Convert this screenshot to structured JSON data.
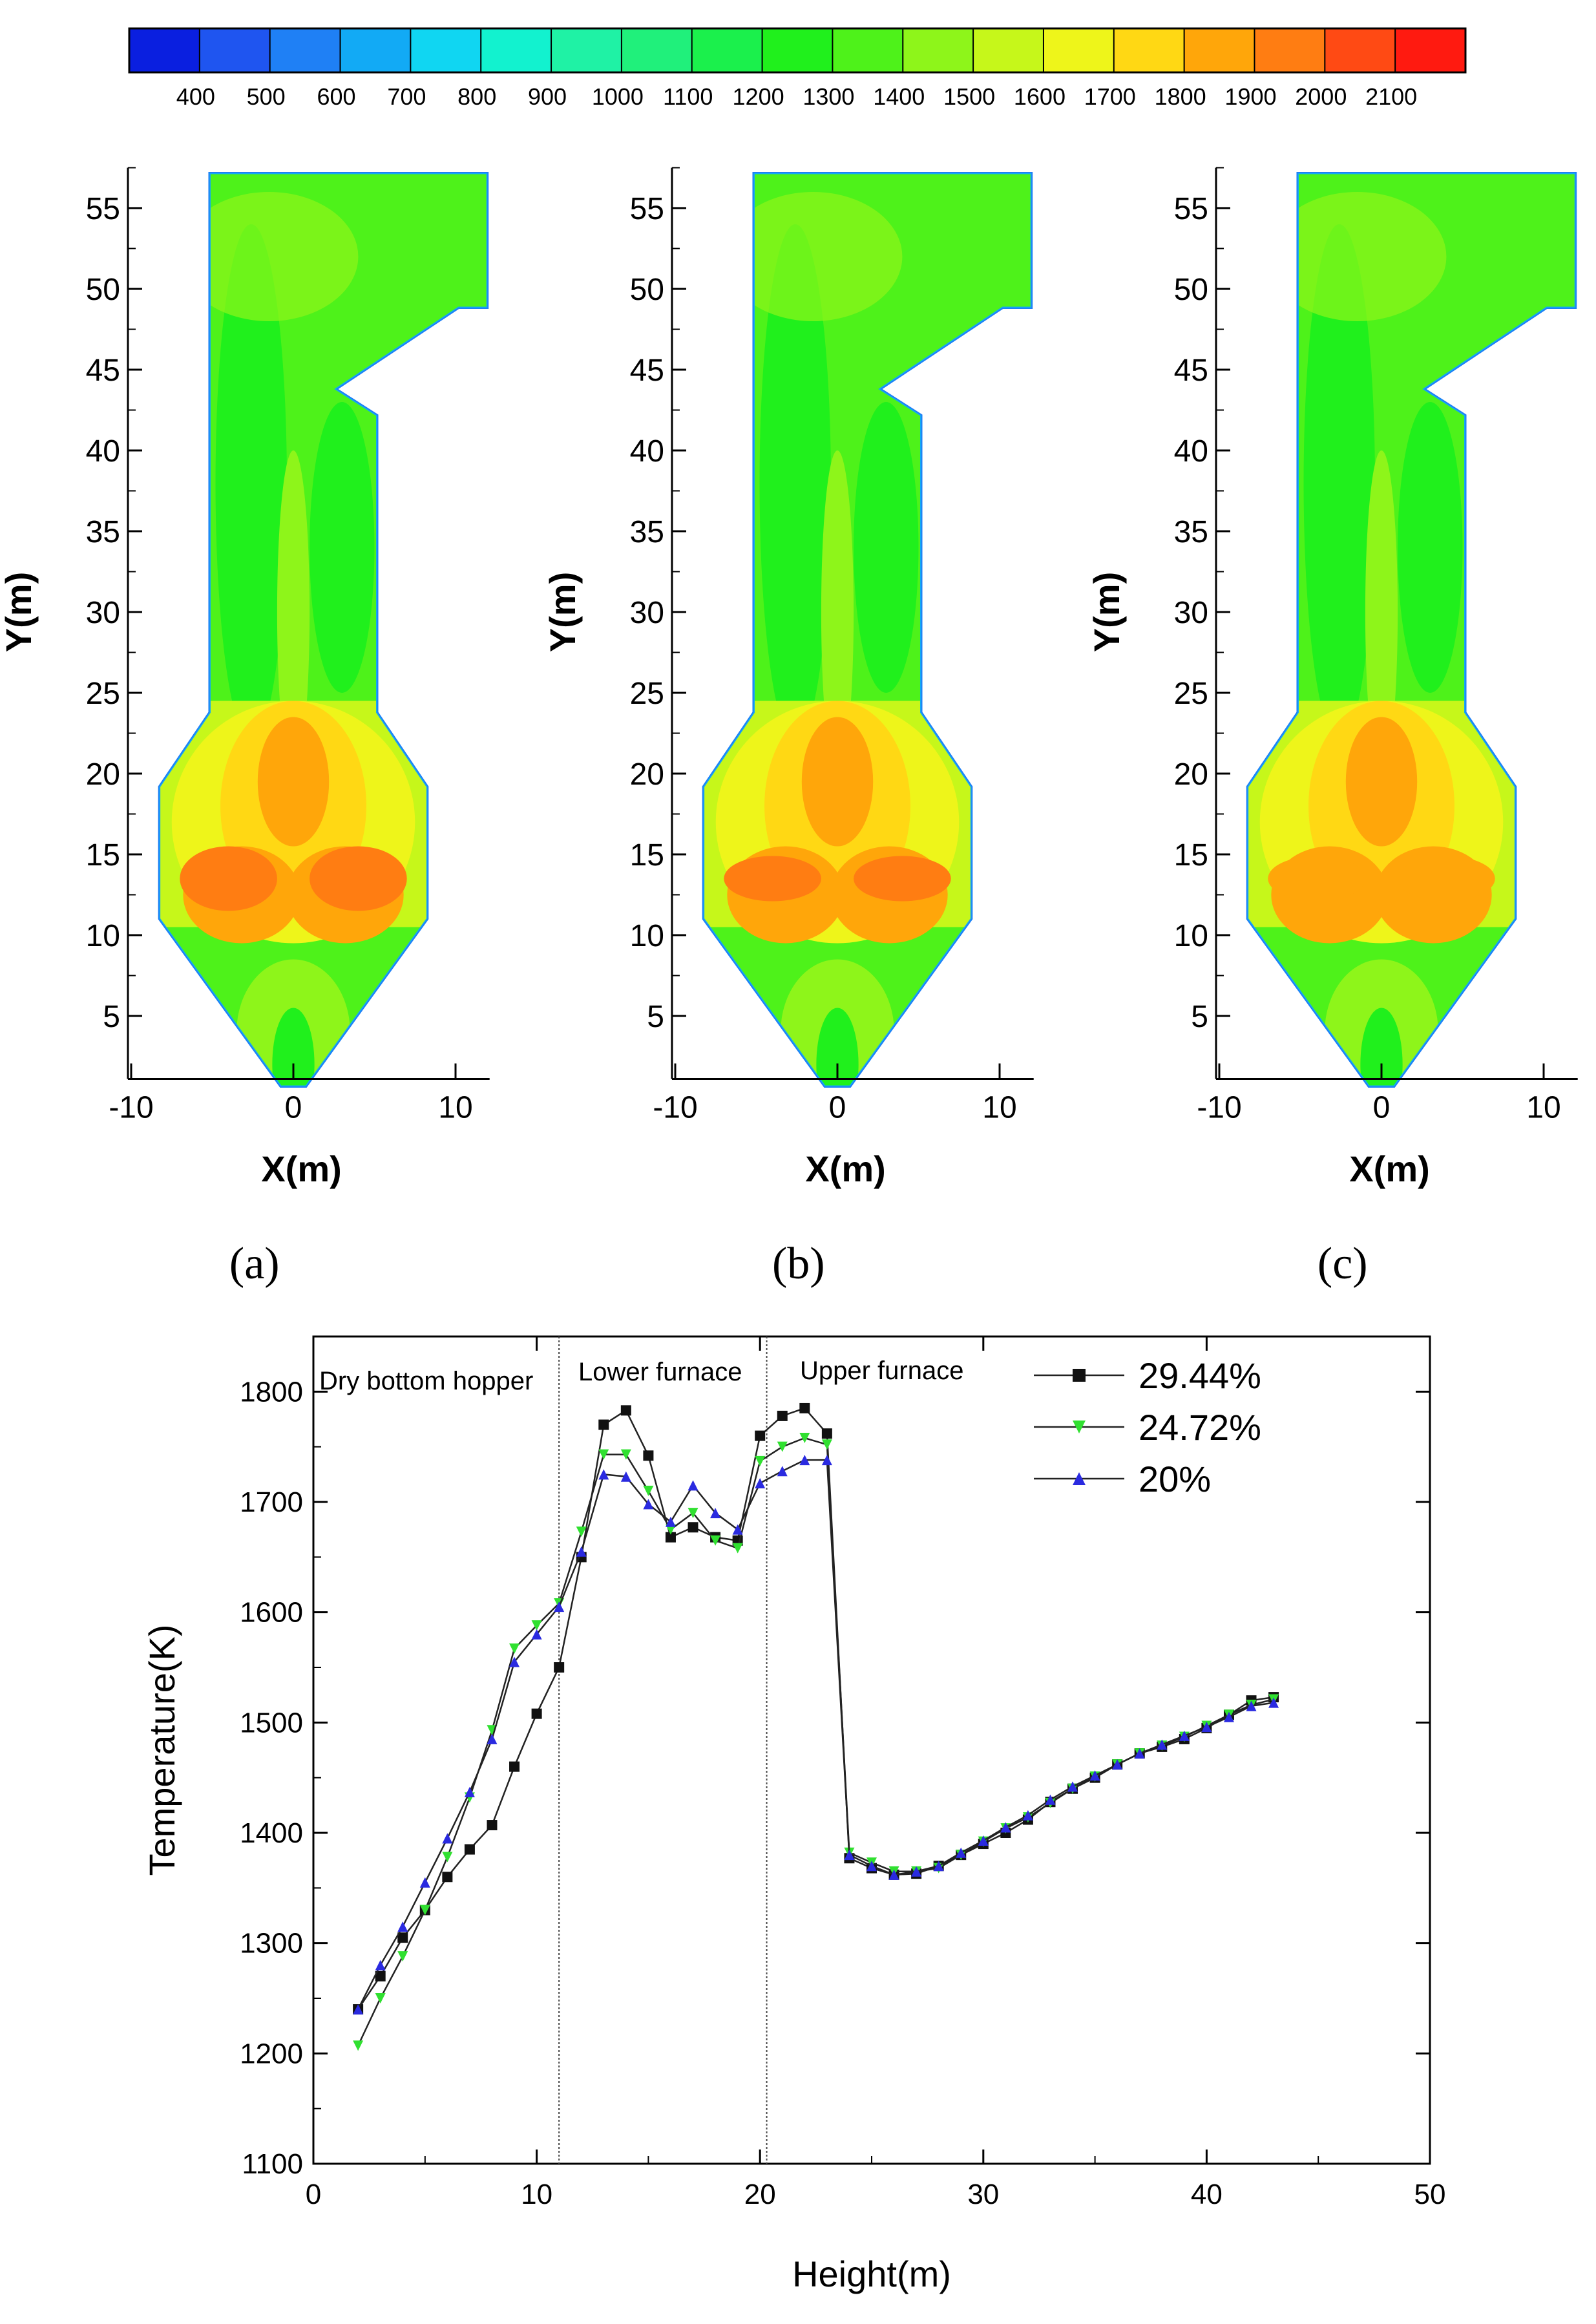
{
  "colorbar": {
    "ticks": [
      "400",
      "500",
      "600",
      "700",
      "800",
      "900",
      "1000",
      "1100",
      "1200",
      "1300",
      "1400",
      "1500",
      "1600",
      "1700",
      "1800",
      "1900",
      "2000",
      "2100"
    ],
    "colors": [
      "#0a1fe0",
      "#1f55f0",
      "#1f80f5",
      "#12aaf5",
      "#10d6f2",
      "#12f2cf",
      "#1ff2a5",
      "#20f07b",
      "#1bf04c",
      "#20f01c",
      "#4ef21a",
      "#8ef51a",
      "#c6f71a",
      "#eef51a",
      "#ffd814",
      "#ffa60a",
      "#ff7d12",
      "#ff4a14",
      "#ff1a10"
    ]
  },
  "contour_panels": [
    {
      "caption": "(a)",
      "xlabel": "X(m)",
      "ylabel": "Y(m)",
      "xticks": [
        "-10",
        "0",
        "10"
      ],
      "yticks": [
        "5",
        "10",
        "15",
        "20",
        "25",
        "30",
        "35",
        "40",
        "45",
        "50",
        "55"
      ]
    },
    {
      "caption": "(b)",
      "xlabel": "X(m)",
      "ylabel": "Y(m)",
      "xticks": [
        "-10",
        "0",
        "10"
      ],
      "yticks": [
        "5",
        "10",
        "15",
        "20",
        "25",
        "30",
        "35",
        "40",
        "45",
        "50",
        "55"
      ]
    },
    {
      "caption": "(c)",
      "xlabel": "X(m)",
      "ylabel": "Y(m)",
      "xticks": [
        "-10",
        "0",
        "10"
      ],
      "yticks": [
        "5",
        "10",
        "15",
        "20",
        "25",
        "30",
        "35",
        "40",
        "45",
        "50",
        "55"
      ]
    }
  ],
  "chart_data": {
    "type": "line",
    "xlabel": "Height(m)",
    "ylabel": "Temperature(K)",
    "xlim": [
      0,
      50
    ],
    "ylim": [
      1100,
      1850
    ],
    "xticks": [
      0,
      10,
      20,
      30,
      40,
      50
    ],
    "yticks": [
      1100,
      1200,
      1300,
      1400,
      1500,
      1600,
      1700,
      1800
    ],
    "region_labels": [
      "Dry bottom hopper",
      "Lower furnace",
      "Upper furnace"
    ],
    "region_dividers": [
      11,
      20.3
    ],
    "legend_position": "top-right",
    "series": [
      {
        "name": "29.44%",
        "color": "#111111",
        "marker": "square",
        "x": [
          2,
          3,
          4,
          5,
          6,
          7,
          8,
          9,
          10,
          11,
          12,
          13,
          14,
          15,
          16,
          17,
          18,
          19,
          20,
          21,
          22,
          23,
          24,
          25,
          26,
          27,
          28,
          29,
          30,
          31,
          32,
          33,
          34,
          35,
          36,
          37,
          38,
          39,
          40,
          41,
          42,
          43
        ],
        "y": [
          1240,
          1270,
          1305,
          1330,
          1360,
          1385,
          1407,
          1460,
          1508,
          1550,
          1650,
          1770,
          1783,
          1742,
          1668,
          1677,
          1668,
          1665,
          1760,
          1778,
          1785,
          1762,
          1377,
          1368,
          1362,
          1363,
          1370,
          1380,
          1390,
          1400,
          1412,
          1428,
          1440,
          1450,
          1462,
          1472,
          1478,
          1485,
          1495,
          1507,
          1520,
          1523
        ]
      },
      {
        "name": "24.72%",
        "color": "#30e030",
        "marker": "triangle-down",
        "x": [
          2,
          3,
          4,
          5,
          6,
          7,
          8,
          9,
          10,
          11,
          12,
          13,
          14,
          15,
          16,
          17,
          18,
          19,
          20,
          21,
          22,
          23,
          24,
          25,
          26,
          27,
          28,
          29,
          30,
          31,
          32,
          33,
          34,
          35,
          36,
          37,
          38,
          39,
          40,
          41,
          42,
          43
        ],
        "y": [
          1207,
          1250,
          1288,
          1330,
          1378,
          1432,
          1493,
          1567,
          1588,
          1608,
          1673,
          1743,
          1743,
          1710,
          1675,
          1690,
          1665,
          1658,
          1737,
          1750,
          1758,
          1752,
          1382,
          1373,
          1365,
          1365,
          1368,
          1380,
          1392,
          1404,
          1414,
          1427,
          1440,
          1451,
          1462,
          1472,
          1479,
          1487,
          1497,
          1507,
          1516,
          1521
        ]
      },
      {
        "name": "20%",
        "color": "#2a2ae0",
        "marker": "triangle-up",
        "x": [
          2,
          3,
          4,
          5,
          6,
          7,
          8,
          9,
          10,
          11,
          12,
          13,
          14,
          15,
          16,
          17,
          18,
          19,
          20,
          21,
          22,
          23,
          24,
          25,
          26,
          27,
          28,
          29,
          30,
          31,
          32,
          33,
          34,
          35,
          36,
          37,
          38,
          39,
          40,
          41,
          42,
          43
        ],
        "y": [
          1240,
          1280,
          1315,
          1355,
          1395,
          1437,
          1485,
          1555,
          1580,
          1605,
          1655,
          1725,
          1723,
          1698,
          1682,
          1715,
          1690,
          1675,
          1717,
          1728,
          1738,
          1738,
          1380,
          1370,
          1362,
          1365,
          1370,
          1382,
          1393,
          1405,
          1416,
          1430,
          1442,
          1452,
          1462,
          1472,
          1480,
          1488,
          1496,
          1505,
          1515,
          1518
        ]
      }
    ]
  }
}
